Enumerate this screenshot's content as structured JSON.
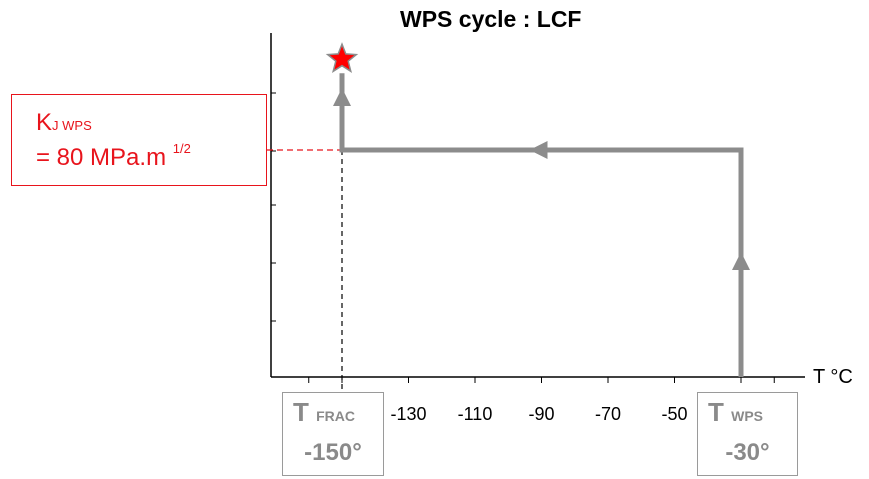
{
  "chart_data": {
    "type": "line",
    "title": "WPS cycle : LCF",
    "xlabel": "T °C",
    "ylabel": "",
    "xlim": [
      -160,
      -20
    ],
    "x_tick_labels": [
      "-130",
      "-110",
      "-90",
      "-70",
      "-50"
    ],
    "x_ticks": [
      -130,
      -110,
      -90,
      -70,
      -50
    ],
    "series": [
      {
        "points": [
          {
            "x": -30,
            "y": 0
          },
          {
            "x": -30,
            "y": 1
          },
          {
            "x": -150,
            "y": 1
          },
          {
            "x": -150,
            "y": 1.4
          }
        ]
      }
    ],
    "fracture_point": {
      "x": -150,
      "y": 1.4
    },
    "k_annotation": {
      "k_main": "K",
      "k_sub": "J WPS",
      "value_text": "= 80 MPa.m",
      "exponent": "1/2"
    },
    "t_frac": {
      "main": "T",
      "sub": "FRAC",
      "value": "-150°"
    },
    "t_wps": {
      "main": "T",
      "sub": "WPS",
      "value": "-30°"
    },
    "colors": {
      "path": "#8c8c8c",
      "annotation": "#e8141c",
      "star": "#ff0000",
      "axis": "#000000"
    }
  }
}
